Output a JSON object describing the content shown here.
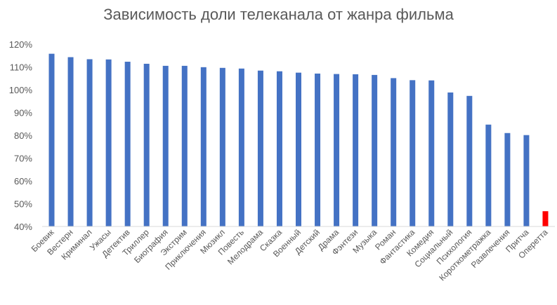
{
  "chart_data": {
    "type": "bar",
    "title": "Зависимость доли телеканала от жанра фильма",
    "xlabel": "",
    "ylabel": "",
    "ylim": [
      40,
      120
    ],
    "y_ticks": [
      40,
      50,
      60,
      70,
      80,
      90,
      100,
      110,
      120
    ],
    "y_tick_labels": [
      "40%",
      "50%",
      "60%",
      "70%",
      "80%",
      "90%",
      "100%",
      "110%",
      "120%"
    ],
    "grid": false,
    "legend": "none",
    "categories": [
      "Боевик",
      "Вестерн",
      "Криминал",
      "Ужасы",
      "Детектив",
      "Триллер",
      "Биография",
      "Экстрим",
      "Приключения",
      "Мюзикл",
      "Повесть",
      "Мелодрама",
      "Сказка",
      "Военный",
      "Детский",
      "Драма",
      "Фэнтези",
      "Музыка",
      "Роман",
      "Фантастика",
      "Комедия",
      "Социальный",
      "Психология",
      "Короткометражка",
      "Развлечения",
      "Притча",
      "Оперетта"
    ],
    "values": [
      115.8,
      114.3,
      113.4,
      113.3,
      112.3,
      111.4,
      110.5,
      110.5,
      109.9,
      109.6,
      109.3,
      108.4,
      108.1,
      107.5,
      107.1,
      106.9,
      106.8,
      106.5,
      105.1,
      104.2,
      104.1,
      98.8,
      97.3,
      84.7,
      81.0,
      80.1,
      46.7
    ],
    "colors": {
      "default": "#4472c4",
      "highlight": "#ff0000",
      "axis": "#d9d9d9",
      "text": "#595959"
    },
    "highlight_categories": [
      "Оперетта"
    ]
  }
}
